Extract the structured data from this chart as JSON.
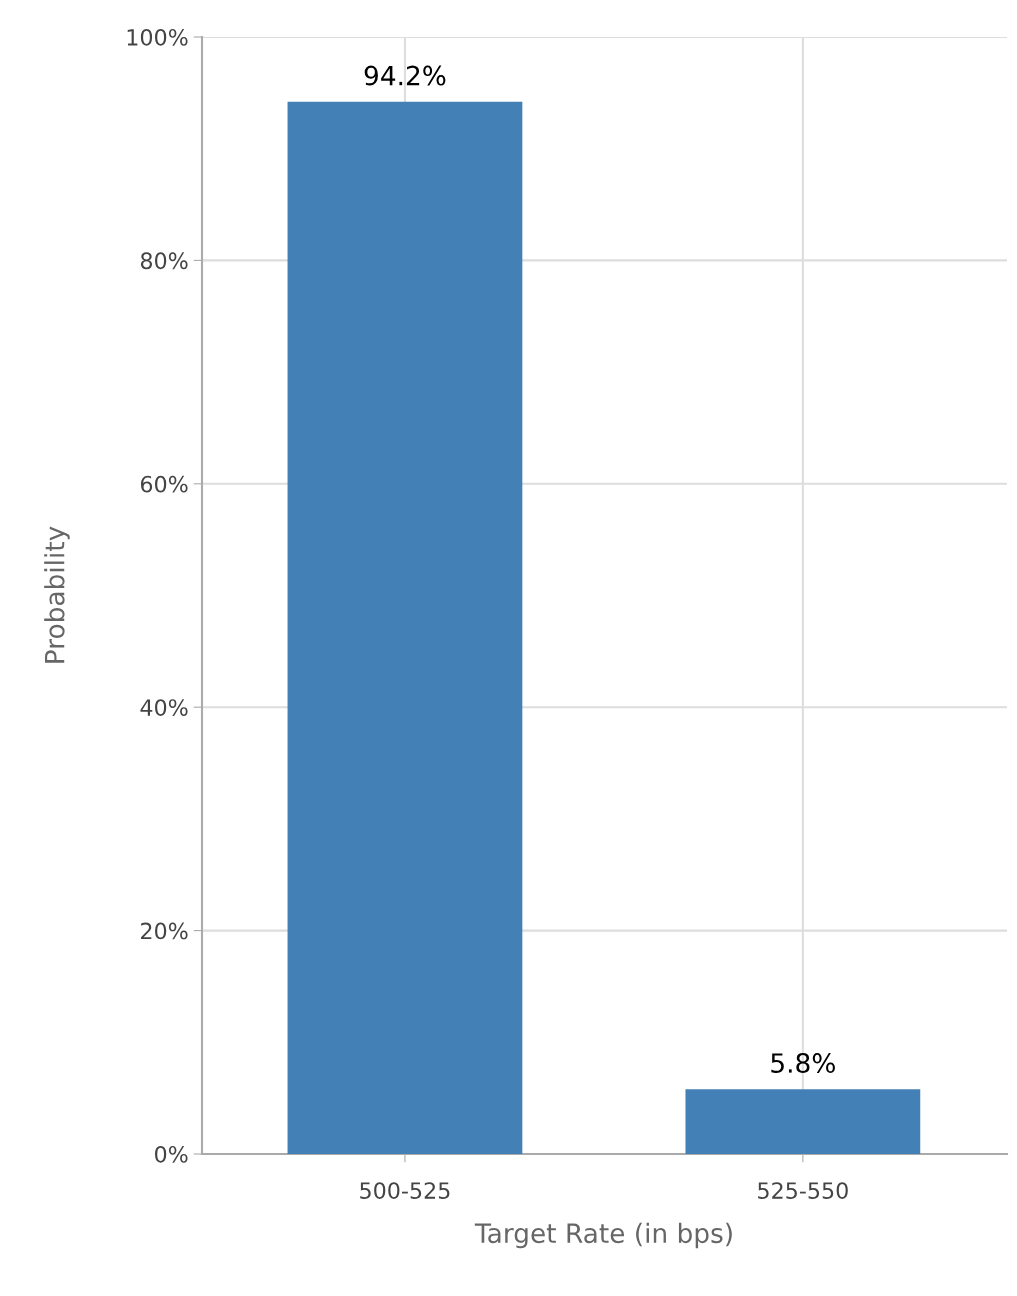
{
  "chart_data": {
    "type": "bar",
    "xlabel": "Target Rate (in bps)",
    "ylabel": "Probability",
    "categories": [
      "500-525",
      "525-550"
    ],
    "values": [
      94.2,
      5.8
    ],
    "value_labels": [
      "94.2%",
      "5.8%"
    ],
    "color": "#4380b5",
    "ylim": [
      0,
      100
    ],
    "yticks": [
      {
        "value": 0,
        "label": "0%"
      },
      {
        "value": 20,
        "label": "20%"
      },
      {
        "value": 40,
        "label": "40%"
      },
      {
        "value": 60,
        "label": "60%"
      },
      {
        "value": 80,
        "label": "80%"
      },
      {
        "value": 100,
        "label": "100%"
      }
    ],
    "grid": true,
    "legend": false
  }
}
